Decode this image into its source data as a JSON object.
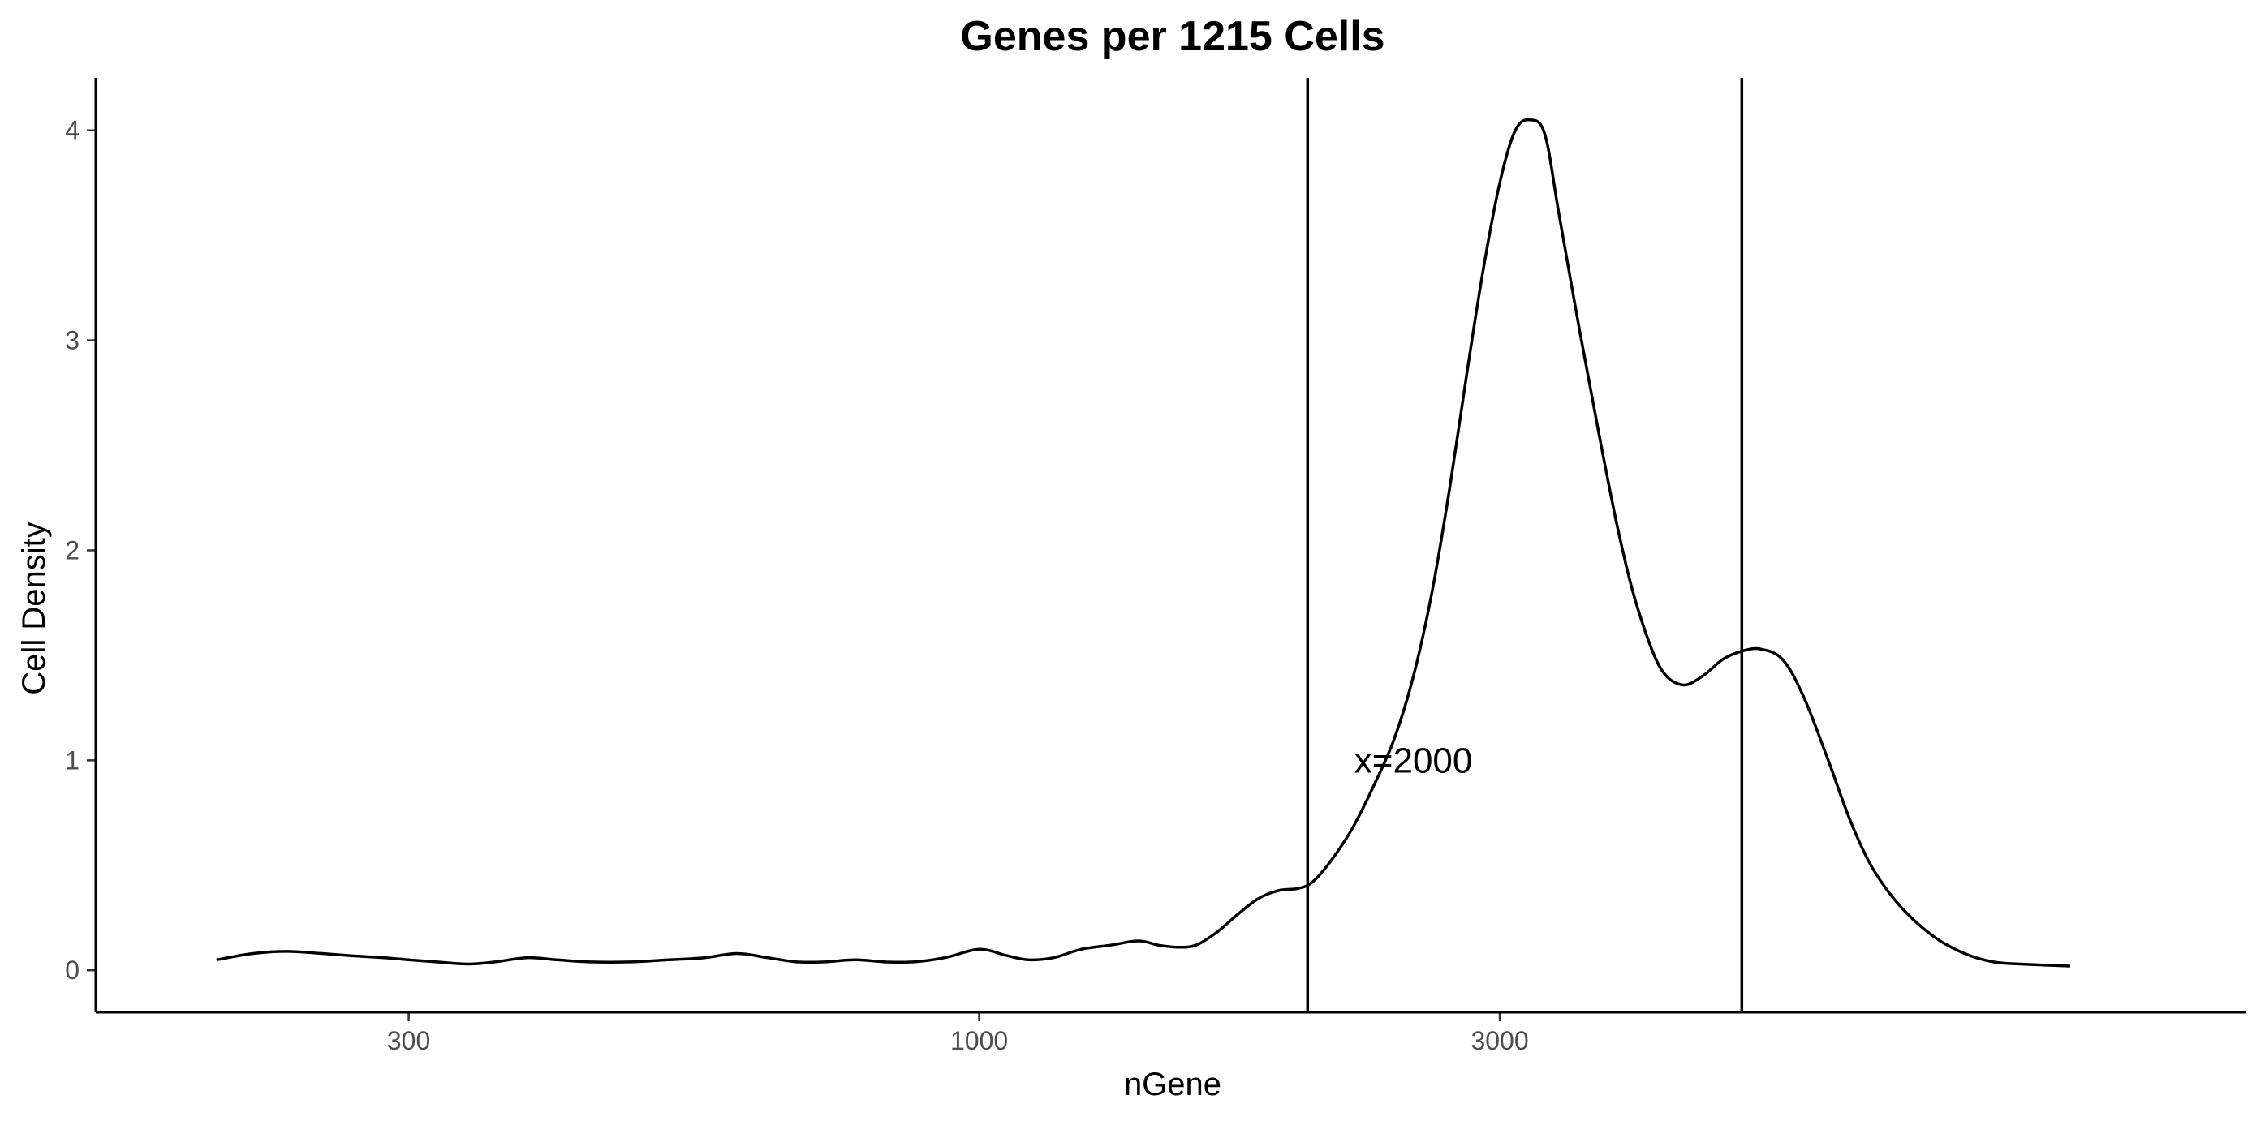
{
  "chart_data": {
    "type": "line",
    "title": "Genes per 1215 Cells",
    "xlabel": "nGene",
    "ylabel": "Cell Density",
    "x_scale": "log10",
    "xlim": [
      155,
      14500
    ],
    "ylim": [
      -0.2,
      4.25
    ],
    "x_ticks": [
      {
        "value": 300,
        "label": "300"
      },
      {
        "value": 1000,
        "label": "1000"
      },
      {
        "value": 3000,
        "label": "3000"
      }
    ],
    "y_ticks": [
      {
        "value": 0,
        "label": "0"
      },
      {
        "value": 1,
        "label": "1"
      },
      {
        "value": 2,
        "label": "2"
      },
      {
        "value": 3,
        "label": "3"
      },
      {
        "value": 4,
        "label": "4"
      }
    ],
    "vlines": [
      2000,
      5000
    ],
    "annotations": [
      {
        "text": "x=2000",
        "x": 2500,
        "y": 1.0
      }
    ],
    "grid": false,
    "legend": "none",
    "series": [
      {
        "color": "#000000",
        "points": [
          [
            200,
            0.05
          ],
          [
            216,
            0.08
          ],
          [
            232,
            0.09
          ],
          [
            250,
            0.08
          ],
          [
            265,
            0.07
          ],
          [
            285,
            0.06
          ],
          [
            300,
            0.05
          ],
          [
            318,
            0.04
          ],
          [
            340,
            0.03
          ],
          [
            360,
            0.04
          ],
          [
            385,
            0.06
          ],
          [
            410,
            0.05
          ],
          [
            440,
            0.04
          ],
          [
            480,
            0.04
          ],
          [
            520,
            0.05
          ],
          [
            560,
            0.06
          ],
          [
            600,
            0.08
          ],
          [
            640,
            0.06
          ],
          [
            680,
            0.04
          ],
          [
            720,
            0.04
          ],
          [
            770,
            0.05
          ],
          [
            820,
            0.04
          ],
          [
            870,
            0.04
          ],
          [
            930,
            0.06
          ],
          [
            1000,
            0.1
          ],
          [
            1060,
            0.07
          ],
          [
            1110,
            0.05
          ],
          [
            1170,
            0.06
          ],
          [
            1240,
            0.1
          ],
          [
            1320,
            0.12
          ],
          [
            1400,
            0.14
          ],
          [
            1460,
            0.12
          ],
          [
            1520,
            0.11
          ],
          [
            1580,
            0.12
          ],
          [
            1650,
            0.18
          ],
          [
            1720,
            0.26
          ],
          [
            1800,
            0.34
          ],
          [
            1880,
            0.38
          ],
          [
            1960,
            0.39
          ],
          [
            2020,
            0.42
          ],
          [
            2100,
            0.52
          ],
          [
            2200,
            0.68
          ],
          [
            2300,
            0.88
          ],
          [
            2400,
            1.1
          ],
          [
            2500,
            1.4
          ],
          [
            2600,
            1.8
          ],
          [
            2700,
            2.3
          ],
          [
            2800,
            2.85
          ],
          [
            2900,
            3.35
          ],
          [
            3000,
            3.75
          ],
          [
            3100,
            4.0
          ],
          [
            3200,
            4.05
          ],
          [
            3300,
            3.98
          ],
          [
            3400,
            3.6
          ],
          [
            3550,
            3.05
          ],
          [
            3700,
            2.55
          ],
          [
            3850,
            2.1
          ],
          [
            4000,
            1.75
          ],
          [
            4200,
            1.45
          ],
          [
            4400,
            1.36
          ],
          [
            4600,
            1.4
          ],
          [
            4800,
            1.48
          ],
          [
            5000,
            1.52
          ],
          [
            5200,
            1.53
          ],
          [
            5450,
            1.48
          ],
          [
            5700,
            1.3
          ],
          [
            6000,
            1.0
          ],
          [
            6300,
            0.7
          ],
          [
            6600,
            0.48
          ],
          [
            7000,
            0.3
          ],
          [
            7500,
            0.16
          ],
          [
            8000,
            0.08
          ],
          [
            8500,
            0.04
          ],
          [
            9000,
            0.03
          ],
          [
            10000,
            0.02
          ]
        ]
      }
    ]
  }
}
